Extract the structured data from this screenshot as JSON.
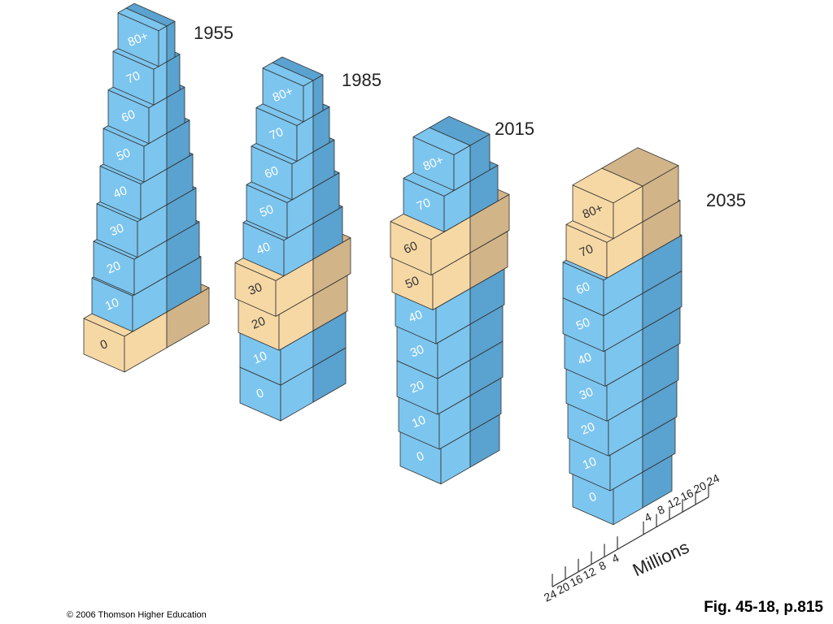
{
  "chart_data": [
    {
      "type": "isometric-pyramid",
      "title": "1955",
      "categories": [
        "0",
        "10",
        "20",
        "30",
        "40",
        "50",
        "60",
        "70",
        "80+"
      ],
      "series": [
        {
          "color": "#7cc5ee",
          "values": [
            13,
            10.5,
            10,
            9,
            8,
            7,
            5.5,
            4,
            2.5
          ]
        },
        {
          "color": "#5aa2cf",
          "values": [
            13,
            10.5,
            10,
            9,
            8,
            7,
            5.5,
            4,
            2.5
          ]
        }
      ],
      "highlight": [
        0
      ],
      "highlight_colors": [
        "#f6d8a5",
        "#d2b489"
      ]
    },
    {
      "type": "isometric-pyramid",
      "title": "1985",
      "categories": [
        "0",
        "10",
        "20",
        "30",
        "40",
        "50",
        "60",
        "70",
        "80+"
      ],
      "series": [
        {
          "color": "#7cc5ee",
          "values": [
            10,
            10,
            10.5,
            11.5,
            9,
            8,
            6.5,
            5,
            3
          ]
        },
        {
          "color": "#5aa2cf",
          "values": [
            10,
            10,
            10.5,
            11.5,
            9,
            8,
            6.5,
            5,
            3
          ]
        }
      ],
      "highlight": [
        2,
        3
      ],
      "highlight_colors": [
        "#f6d8a5",
        "#d2b489"
      ]
    },
    {
      "type": "isometric-pyramid",
      "title": "2015",
      "categories": [
        "0",
        "10",
        "20",
        "30",
        "40",
        "50",
        "60",
        "70",
        "80+"
      ],
      "series": [
        {
          "color": "#7cc5ee",
          "values": [
            9,
            9.5,
            10,
            10,
            10.5,
            11.5,
            12,
            8,
            5
          ]
        },
        {
          "color": "#5aa2cf",
          "values": [
            9,
            9.5,
            10,
            10,
            10.5,
            11.5,
            12,
            8.5,
            6
          ]
        }
      ],
      "highlight": [
        5,
        6
      ],
      "highlight_colors": [
        "#f6d8a5",
        "#d2b489"
      ]
    },
    {
      "type": "isometric-pyramid",
      "title": "2035",
      "categories": [
        "0",
        "10",
        "20",
        "30",
        "40",
        "50",
        "60",
        "70",
        "80+"
      ],
      "series": [
        {
          "color": "#7cc5ee",
          "values": [
            9,
            10,
            10.5,
            11,
            11.5,
            12,
            12,
            11,
            9
          ]
        },
        {
          "color": "#5aa2cf",
          "values": [
            9,
            10,
            10.5,
            11,
            11.5,
            12,
            12,
            11.5,
            11
          ]
        }
      ],
      "highlight": [
        7,
        8
      ],
      "highlight_colors": [
        "#f6d8a5",
        "#d2b489"
      ],
      "xlabel": "Millions",
      "xlim": [
        -24,
        24
      ],
      "xticks": [
        {
          "value": -24,
          "label": "24"
        },
        {
          "value": -20,
          "label": "20"
        },
        {
          "value": -16,
          "label": "16"
        },
        {
          "value": -12,
          "label": "12"
        },
        {
          "value": -8,
          "label": "8"
        },
        {
          "value": -4,
          "label": "4"
        },
        4,
        8,
        12,
        16,
        20,
        24
      ]
    }
  ],
  "footer": {
    "credit": "© 2006 Thomson Higher Education",
    "figure": "Fig. 45-18, p.815"
  }
}
